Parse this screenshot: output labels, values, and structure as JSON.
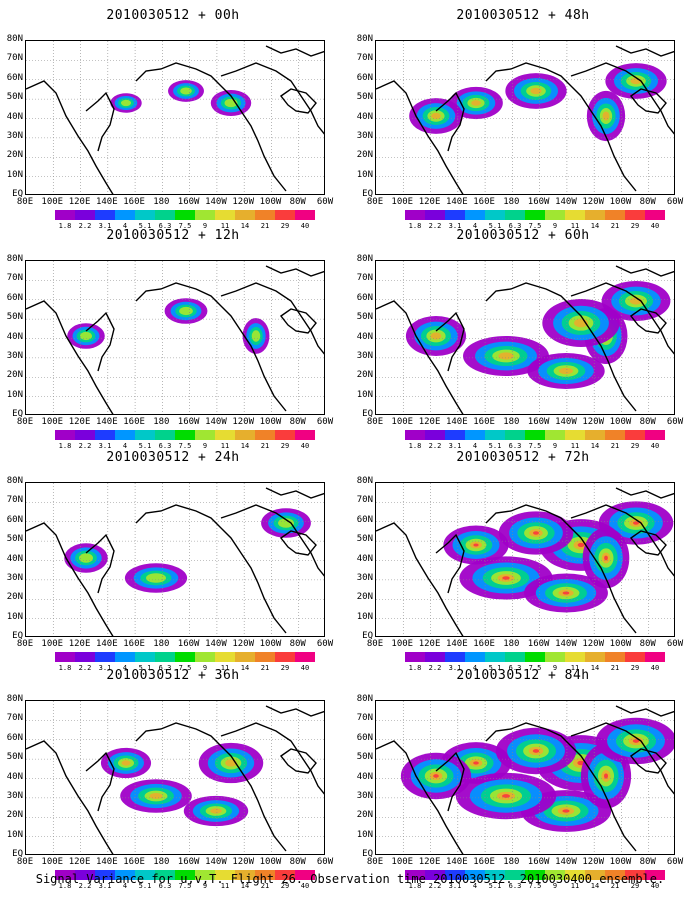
{
  "panels": [
    {
      "title": "2010030512 + 00h",
      "level": 0.18
    },
    {
      "title": "2010030512 + 48h",
      "level": 0.62
    },
    {
      "title": "2010030512 + 12h",
      "level": 0.3
    },
    {
      "title": "2010030512 + 60h",
      "level": 0.75
    },
    {
      "title": "2010030512 + 24h",
      "level": 0.42
    },
    {
      "title": "2010030512 + 72h",
      "level": 0.85
    },
    {
      "title": "2010030512 + 36h",
      "level": 0.55
    },
    {
      "title": "2010030512 + 84h",
      "level": 0.95
    }
  ],
  "lat_labels": [
    "80N",
    "70N",
    "60N",
    "50N",
    "40N",
    "30N",
    "20N",
    "10N",
    "EQ"
  ],
  "lon_labels": [
    "80E",
    "100E",
    "120E",
    "140E",
    "160E",
    "180",
    "160W",
    "140W",
    "120W",
    "100W",
    "80W",
    "60W"
  ],
  "colorbar": {
    "labels": [
      "1.8",
      "2.2",
      "3.1",
      "4",
      "5.1",
      "6.3",
      "7.5",
      "9",
      "11",
      "14",
      "21",
      "29",
      "40"
    ],
    "colors": [
      "#a000c8",
      "#7a00dc",
      "#1e3cff",
      "#0096ff",
      "#00c8c8",
      "#00d28c",
      "#00dc00",
      "#a0e632",
      "#e6dc32",
      "#e6af2d",
      "#f08228",
      "#fa3c3c",
      "#f00082"
    ]
  },
  "footer": "Signal Variance for u,v,T. Flight 26. Observation time 2010030512. 2010030400 ensemble."
}
